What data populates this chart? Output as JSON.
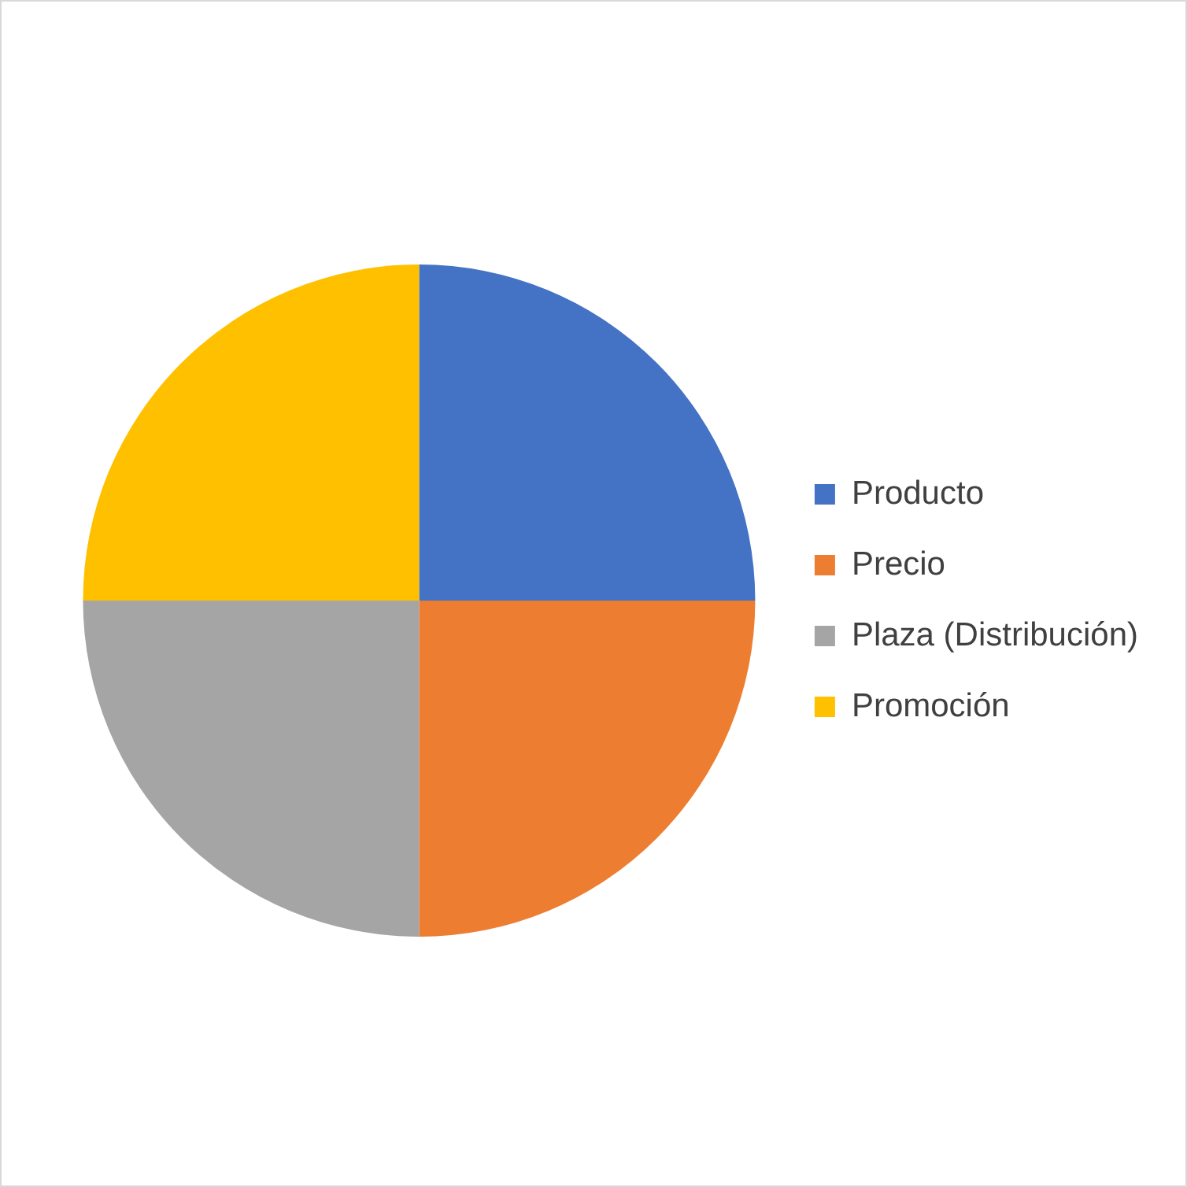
{
  "chart_data": {
    "type": "pie",
    "categories": [
      "Producto",
      "Precio",
      "Plaza (Distribución)",
      "Promoción"
    ],
    "values": [
      25,
      25,
      25,
      25
    ],
    "colors": [
      "#4472c4",
      "#ed7d31",
      "#a5a5a5",
      "#ffc000"
    ],
    "legend": "right"
  }
}
